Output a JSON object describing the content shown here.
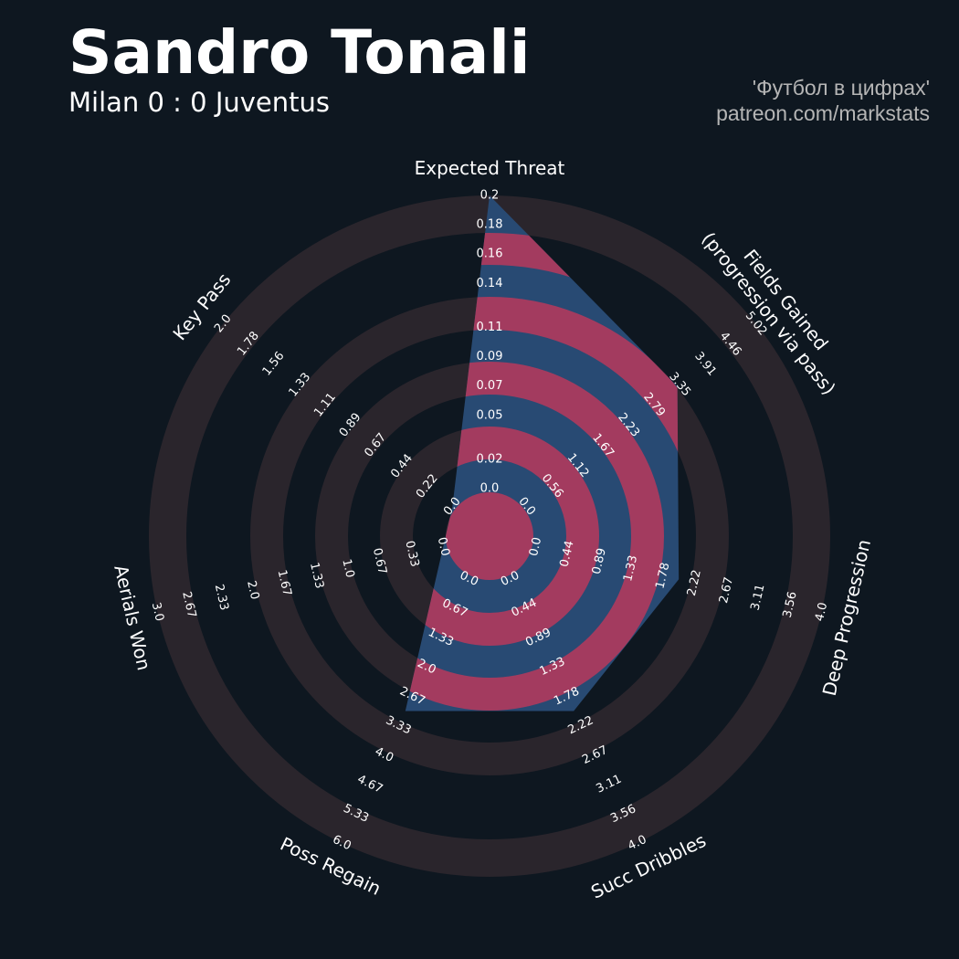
{
  "chart_data": {
    "type": "radar",
    "title": "Sandro Tonali",
    "subtitle": "Milan 0 : 0 Juventus",
    "credits": [
      "'Футбол в цифрах'",
      "patreon.com/markstats"
    ],
    "axes": [
      {
        "label": [
          "Expected Threat"
        ],
        "lim": [
          0,
          0.2
        ],
        "ticks": [
          {
            "value": 0,
            "label": "0.0"
          },
          0.02,
          0.05,
          0.07,
          0.09,
          0.11,
          0.14,
          0.16,
          0.18,
          0.2
        ]
      },
      {
        "label": [
          "Fields Gained",
          "(progression via pass)"
        ],
        "lim": [
          0,
          5.02
        ],
        "ticks": [
          {
            "value": 0,
            "label": "0.0"
          },
          0.56,
          1.12,
          1.67,
          2.23,
          2.79,
          3.35,
          3.91,
          4.46,
          5.02
        ]
      },
      {
        "label": [
          "Deep Progression"
        ],
        "lim": [
          0,
          4
        ],
        "ticks": [
          {
            "value": 0,
            "label": "0.0"
          },
          0.44,
          0.89,
          1.33,
          1.78,
          2.22,
          2.67,
          3.11,
          3.56,
          {
            "value": 4,
            "label": "4.0"
          }
        ]
      },
      {
        "label": [
          "Succ Dribbles"
        ],
        "lim": [
          0,
          4
        ],
        "ticks": [
          {
            "value": 0,
            "label": "0.0"
          },
          0.44,
          0.89,
          1.33,
          1.78,
          2.22,
          2.67,
          3.11,
          3.56,
          {
            "value": 4,
            "label": "4.0"
          }
        ]
      },
      {
        "label": [
          "Poss Regain"
        ],
        "lim": [
          0,
          6
        ],
        "ticks": [
          {
            "value": 0,
            "label": "0.0"
          },
          0.67,
          1.33,
          {
            "value": 2,
            "label": "2.0"
          },
          2.67,
          3.33,
          {
            "value": 4,
            "label": "4.0"
          },
          4.67,
          5.33,
          {
            "value": 6,
            "label": "6.0"
          }
        ]
      },
      {
        "label": [
          "Aerials Won"
        ],
        "lim": [
          0,
          3
        ],
        "ticks": [
          {
            "value": 0,
            "label": "0.0"
          },
          0.33,
          0.67,
          {
            "value": 1,
            "label": "1.0"
          },
          1.33,
          1.67,
          {
            "value": 2,
            "label": "2.0"
          },
          2.33,
          2.67,
          {
            "value": 3,
            "label": "3.0"
          }
        ]
      },
      {
        "label": [
          "Key Pass"
        ],
        "lim": [
          0,
          2
        ],
        "ticks": [
          {
            "value": 0,
            "label": "0.0"
          },
          0.22,
          0.44,
          0.67,
          0.89,
          1.11,
          1.33,
          1.56,
          1.78,
          {
            "value": 2,
            "label": "2.0"
          }
        ]
      }
    ],
    "series": [
      {
        "color": "#284a73",
        "values": [
          0.2,
          3.3,
          2.0,
          2.0,
          3.0,
          0,
          0
        ]
      }
    ],
    "ring_color": "#2a252c",
    "highlight_color": "#a33b5f"
  }
}
